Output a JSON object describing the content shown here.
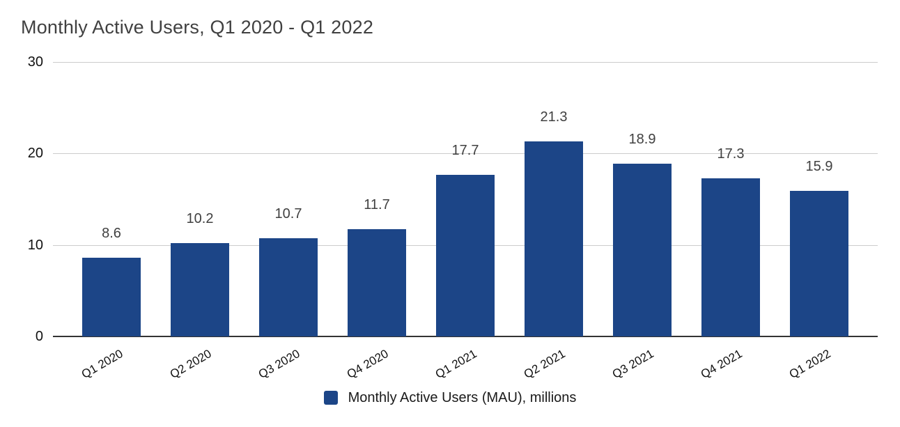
{
  "chart_data": {
    "type": "bar",
    "title": "Monthly Active Users, Q1 2020 - Q1 2022",
    "categories": [
      "Q1 2020",
      "Q2 2020",
      "Q3 2020",
      "Q4 2020",
      "Q1 2021",
      "Q2 2021",
      "Q3 2021",
      "Q4 2021",
      "Q1 2022"
    ],
    "values": [
      8.6,
      10.2,
      10.7,
      11.7,
      17.7,
      21.3,
      18.9,
      17.3,
      15.9
    ],
    "legend_label": "Monthly Active Users (MAU), millions",
    "legend_position": "bottom",
    "xlabel": "",
    "ylabel": "",
    "y_ticks": [
      0,
      10,
      20,
      30
    ],
    "ylim": [
      0,
      30
    ],
    "grid": true,
    "data_labels_shown": true,
    "colors": {
      "bar": "#1c4587",
      "gridline": "#cccccc",
      "baseline": "#333333",
      "title_text": "#404040",
      "value_label_text": "#404040",
      "tick_text": "#111111"
    }
  }
}
